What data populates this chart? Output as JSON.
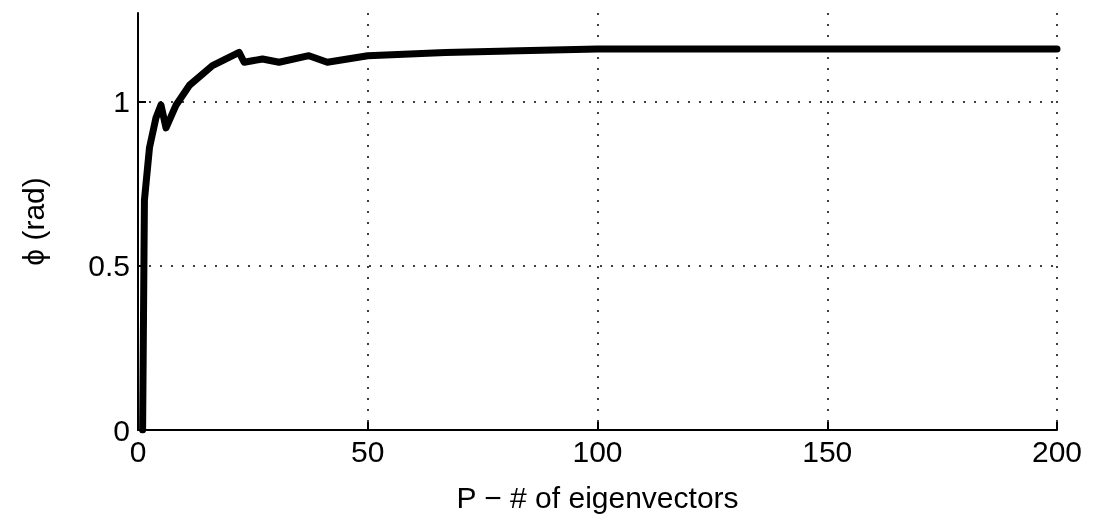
{
  "chart_data": {
    "type": "line",
    "xlabel": "P − # of eigenvectors",
    "ylabel": "ϕ (rad)",
    "x": [
      1,
      1.4,
      2.5,
      3.9,
      5,
      6.1,
      8.3,
      11.2,
      16.2,
      22,
      23.1,
      27.1,
      30.7,
      37.2,
      41.2,
      50,
      66.9,
      100,
      150,
      200
    ],
    "series": [
      {
        "color": "#000000",
        "values": [
          0,
          0.7,
          0.86,
          0.95,
          0.99,
          0.92,
          0.99,
          1.05,
          1.11,
          1.15,
          1.12,
          1.13,
          1.12,
          1.14,
          1.12,
          1.14,
          1.15,
          1.16,
          1.16,
          1.16
        ]
      }
    ],
    "xlim": [
      0,
      200
    ],
    "xticks": [
      0,
      50,
      100,
      150,
      200
    ],
    "ylim": [
      0,
      1.27
    ],
    "yticks": [
      0,
      0.5,
      1
    ],
    "grid": true,
    "marker": "none",
    "line_style": "solid"
  }
}
